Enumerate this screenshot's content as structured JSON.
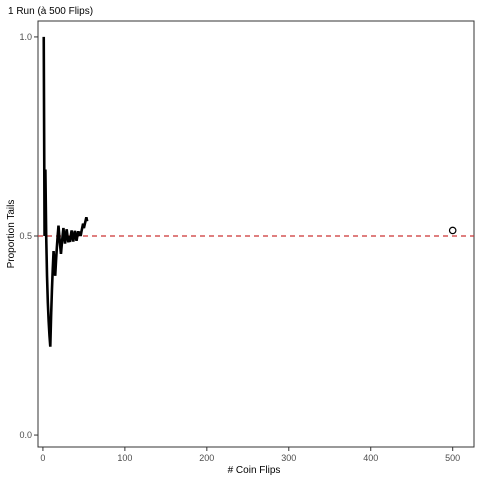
{
  "chart_data": {
    "type": "line",
    "title": "1 Run (à 500 Flips)",
    "xlabel": "# Coin Flips",
    "ylabel": "Proportion Tails",
    "xlim": [
      -6,
      526
    ],
    "ylim": [
      -0.03,
      1.04
    ],
    "x_ticks": [
      0,
      100,
      200,
      300,
      400,
      500
    ],
    "y_ticks": [
      0.0,
      0.5,
      1.0
    ],
    "y_tick_labels": [
      "0.0",
      "0.5",
      "1.0"
    ],
    "grid": false,
    "series": [
      {
        "x": [
          1,
          2,
          3,
          4,
          5,
          6,
          7,
          8,
          9,
          10,
          11,
          12,
          13,
          14,
          15,
          16,
          17,
          18,
          19,
          20,
          21,
          22,
          23,
          24,
          25,
          26,
          27,
          28,
          29,
          30,
          31,
          32,
          33,
          34,
          35,
          36,
          37,
          38,
          39,
          40,
          41,
          42,
          43,
          44,
          45,
          46,
          47,
          48,
          49,
          50,
          51,
          52,
          53,
          54
        ],
        "y": [
          1.0,
          0.5,
          0.667,
          0.5,
          0.4,
          0.333,
          0.286,
          0.25,
          0.222,
          0.3,
          0.364,
          0.417,
          0.462,
          0.429,
          0.4,
          0.438,
          0.471,
          0.5,
          0.526,
          0.5,
          0.476,
          0.455,
          0.478,
          0.5,
          0.52,
          0.5,
          0.481,
          0.5,
          0.517,
          0.5,
          0.484,
          0.5,
          0.485,
          0.5,
          0.514,
          0.5,
          0.486,
          0.5,
          0.513,
          0.5,
          0.488,
          0.5,
          0.512,
          0.5,
          0.511,
          0.5,
          0.511,
          0.521,
          0.531,
          0.52,
          0.529,
          0.538,
          0.547,
          0.537
        ]
      }
    ],
    "reference_line": {
      "y": 0.5,
      "style": "dashed",
      "color": "#cc3333"
    },
    "final_point": {
      "x": 500,
      "y": 0.514,
      "marker": "open-circle"
    },
    "colors": {
      "line": "#000000",
      "reference": "#cc3333",
      "frame": "#333333"
    }
  }
}
